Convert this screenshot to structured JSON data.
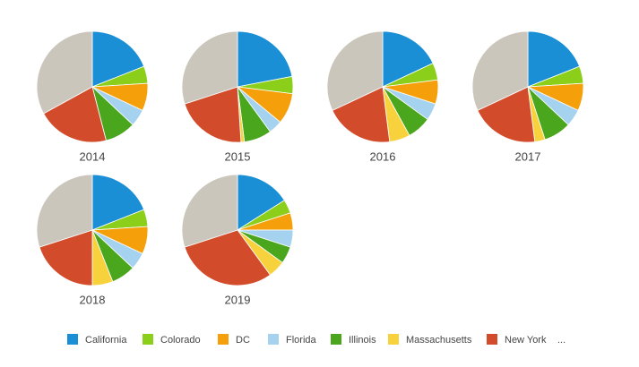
{
  "chart_data": [
    {
      "type": "pie",
      "title": "2014",
      "categories": [
        "California",
        "Colorado",
        "DC",
        "Florida",
        "Illinois",
        "Massachusetts",
        "New York",
        null
      ],
      "colors": [
        "#1a8fd6",
        "#8ccf1a",
        "#f5a00a",
        "#a5d2ef",
        "#4aa61c",
        "#f7d23c",
        "#d24b2b",
        "#cbc6bc"
      ],
      "values": [
        19,
        5,
        8,
        5,
        9,
        0,
        21,
        33
      ],
      "legend_more": "..."
    },
    {
      "type": "pie",
      "title": "2015",
      "categories": [
        "California",
        "Colorado",
        "DC",
        "Florida",
        "Illinois",
        "Massachusetts",
        "New York",
        null
      ],
      "colors": [
        "#1a8fd6",
        "#8ccf1a",
        "#f5a00a",
        "#a5d2ef",
        "#4aa61c",
        "#f7d23c",
        "#d24b2b",
        "#cbc6bc"
      ],
      "values": [
        22,
        5,
        9,
        4,
        8,
        1,
        21,
        30
      ]
    },
    {
      "type": "pie",
      "title": "2016",
      "categories": [
        "California",
        "Colorado",
        "DC",
        "Florida",
        "Illinois",
        "Massachusetts",
        "New York",
        null
      ],
      "colors": [
        "#1a8fd6",
        "#8ccf1a",
        "#f5a00a",
        "#a5d2ef",
        "#4aa61c",
        "#f7d23c",
        "#d24b2b",
        "#cbc6bc"
      ],
      "values": [
        18,
        5,
        7,
        5,
        7,
        6,
        20,
        32
      ]
    },
    {
      "type": "pie",
      "title": "2017",
      "categories": [
        "California",
        "Colorado",
        "DC",
        "Florida",
        "Illinois",
        "Massachusetts",
        "New York",
        null
      ],
      "colors": [
        "#1a8fd6",
        "#8ccf1a",
        "#f5a00a",
        "#a5d2ef",
        "#4aa61c",
        "#f7d23c",
        "#d24b2b",
        "#cbc6bc"
      ],
      "values": [
        19,
        5,
        8,
        5,
        8,
        3,
        20,
        32
      ]
    },
    {
      "type": "pie",
      "title": "2018",
      "categories": [
        "California",
        "Colorado",
        "DC",
        "Florida",
        "Illinois",
        "Massachusetts",
        "New York",
        null
      ],
      "colors": [
        "#1a8fd6",
        "#8ccf1a",
        "#f5a00a",
        "#a5d2ef",
        "#4aa61c",
        "#f7d23c",
        "#d24b2b",
        "#cbc6bc"
      ],
      "values": [
        19,
        5,
        8,
        5,
        7,
        6,
        20,
        30
      ]
    },
    {
      "type": "pie",
      "title": "2019",
      "categories": [
        "California",
        "Colorado",
        "DC",
        "Florida",
        "Illinois",
        "Massachusetts",
        "New York",
        null
      ],
      "colors": [
        "#1a8fd6",
        "#8ccf1a",
        "#f5a00a",
        "#a5d2ef",
        "#4aa61c",
        "#f7d23c",
        "#d24b2b",
        "#cbc6bc"
      ],
      "values": [
        16,
        4,
        5,
        5,
        5,
        5,
        30,
        30
      ]
    }
  ]
}
